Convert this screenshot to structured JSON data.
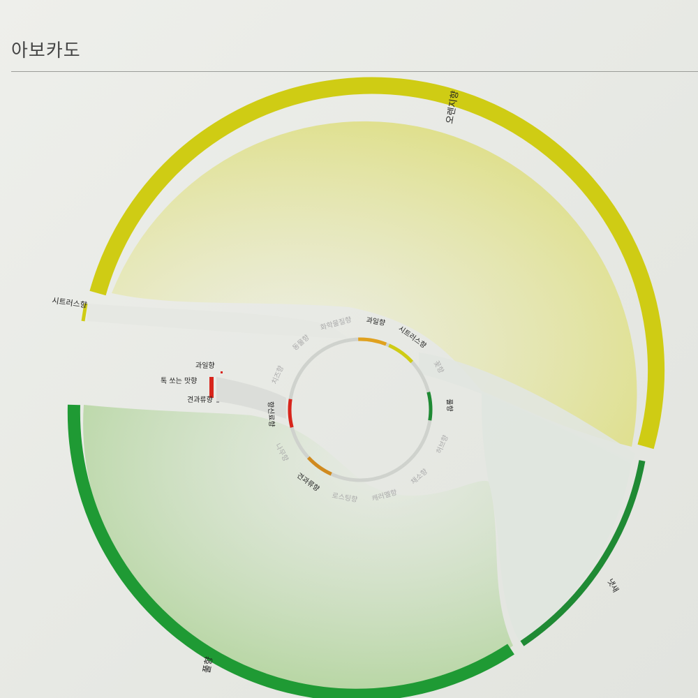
{
  "page": {
    "title": "아보카도"
  },
  "outer_categories": [
    {
      "key": "orange",
      "label": "오렌지향",
      "color": "#cfcc14"
    },
    {
      "key": "citrus",
      "label": "시트러스향",
      "color": "#cfcc14"
    },
    {
      "key": "grass",
      "label": "풀향",
      "color": "#1f9a34"
    },
    {
      "key": "smell",
      "label": "냇새",
      "color": "#1f9a34"
    }
  ],
  "left_labels": [
    {
      "key": "fruity",
      "label": "과일향",
      "color": "#d8251c"
    },
    {
      "key": "pungent",
      "label": "톡 쏘는 맛향",
      "color": "#d8251c"
    },
    {
      "key": "nutty",
      "label": "견과류향",
      "color": "#d8251c"
    }
  ],
  "inner_categories": [
    {
      "key": "fruit",
      "label": "과일향",
      "active": true,
      "color": "#e0a11e"
    },
    {
      "key": "citrus",
      "label": "시트러스향",
      "active": true,
      "color": "#cfcc14"
    },
    {
      "key": "flower",
      "label": "꽃향",
      "active": false
    },
    {
      "key": "grass",
      "label": "풀향",
      "active": true,
      "color": "#1f8a34"
    },
    {
      "key": "herb",
      "label": "허브향",
      "active": false
    },
    {
      "key": "vegetable",
      "label": "채소향",
      "active": false
    },
    {
      "key": "caramel",
      "label": "캐러멜향",
      "active": false
    },
    {
      "key": "roast",
      "label": "로스팅향",
      "active": false
    },
    {
      "key": "nut",
      "label": "견과류향",
      "active": true,
      "color": "#d08a1e"
    },
    {
      "key": "wood",
      "label": "나무향",
      "active": false
    },
    {
      "key": "spice",
      "label": "향신료향",
      "active": true,
      "color": "#d8251c"
    },
    {
      "key": "cheese",
      "label": "치즈향",
      "active": false
    },
    {
      "key": "meat",
      "label": "동물향",
      "active": false
    },
    {
      "key": "chemical",
      "label": "화학물질향",
      "active": false
    }
  ]
}
